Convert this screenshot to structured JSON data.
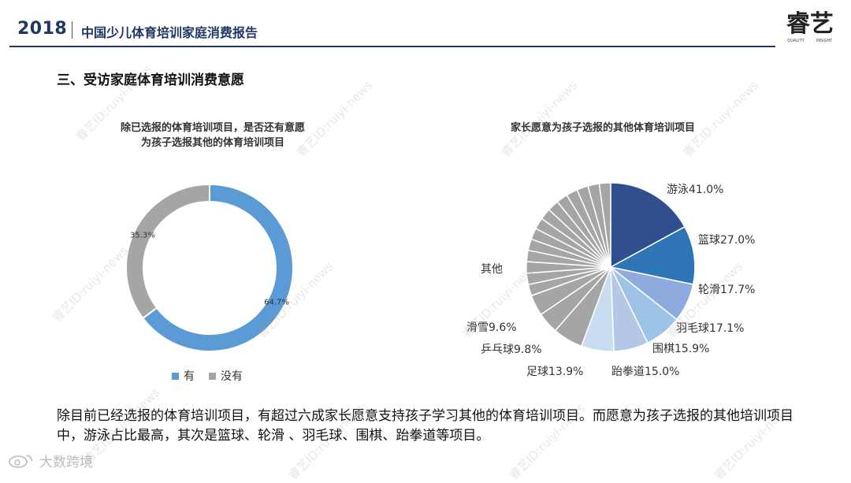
{
  "header": {
    "year": "2018",
    "title": "中国少儿体育培训家庭消费报告"
  },
  "section_title": "三、受访家庭体育培训消费意愿",
  "charts": {
    "left_title_line1": "除已选报的体育培训项目，是否还有意愿",
    "left_title_line2": "为孩子选报其他的体育培训项目",
    "right_title": "家长愿意为孩子选报的其他体育培训项目",
    "legend_yes": "有",
    "legend_no": "没有"
  },
  "summary": "除目前已经选报的体育培训项目，有超过六成家长愿意支持孩子学习其他的体育培训项目。而愿意为孩子选报的其他培训项目中，游泳占比最高，其次是篮球、轮滑 、羽毛球、围棋、跆拳道等项目。",
  "watermark": "大数跨境",
  "colors": {
    "header_blue": "#1f3864",
    "yes": "#5b9bd5",
    "no": "#a5a5a5"
  },
  "chart_data": [
    {
      "type": "pie",
      "variant": "donut",
      "title": "除已选报的体育培训项目，是否还有意愿为孩子选报其他的体育培训项目",
      "legend_position": "bottom",
      "slices": [
        {
          "name": "有",
          "value": 64.7,
          "label": "64.7%",
          "color": "#5b9bd5"
        },
        {
          "name": "没有",
          "value": 35.3,
          "label": "35.3%",
          "color": "#a5a5a5"
        }
      ]
    },
    {
      "type": "pie",
      "title": "家长愿意为孩子选报的其他体育培训项目",
      "slices": [
        {
          "name": "游泳",
          "value": 41.0,
          "label": "游泳41.0%",
          "color": "#2f4f8f"
        },
        {
          "name": "篮球",
          "value": 27.0,
          "label": "篮球27.0%",
          "color": "#2e75b6"
        },
        {
          "name": "轮滑",
          "value": 17.7,
          "label": "轮滑17.7%",
          "color": "#8faadc"
        },
        {
          "name": "羽毛球",
          "value": 17.1,
          "label": "羽毛球17.1%",
          "color": "#9dc3e6"
        },
        {
          "name": "围棋",
          "value": 15.9,
          "label": "围棋15.9%",
          "color": "#b4c7e7"
        },
        {
          "name": "跆拳道",
          "value": 15.0,
          "label": "跆拳道15.0%",
          "color": "#c9dcf0"
        },
        {
          "name": "足球",
          "value": 13.9,
          "label": "足球13.9%",
          "color": "#a5a5a5"
        },
        {
          "name": "乒乓球",
          "value": 9.8,
          "label": "乒乓球9.8%",
          "color": "#a5a5a5"
        },
        {
          "name": "滑雪",
          "value": 9.6,
          "label": "滑雪9.6%",
          "color": "#a5a5a5"
        },
        {
          "name": "其他",
          "value": 73.3,
          "label": "其他",
          "color": "#a5a5a5",
          "sub_segments": 14
        }
      ]
    }
  ]
}
